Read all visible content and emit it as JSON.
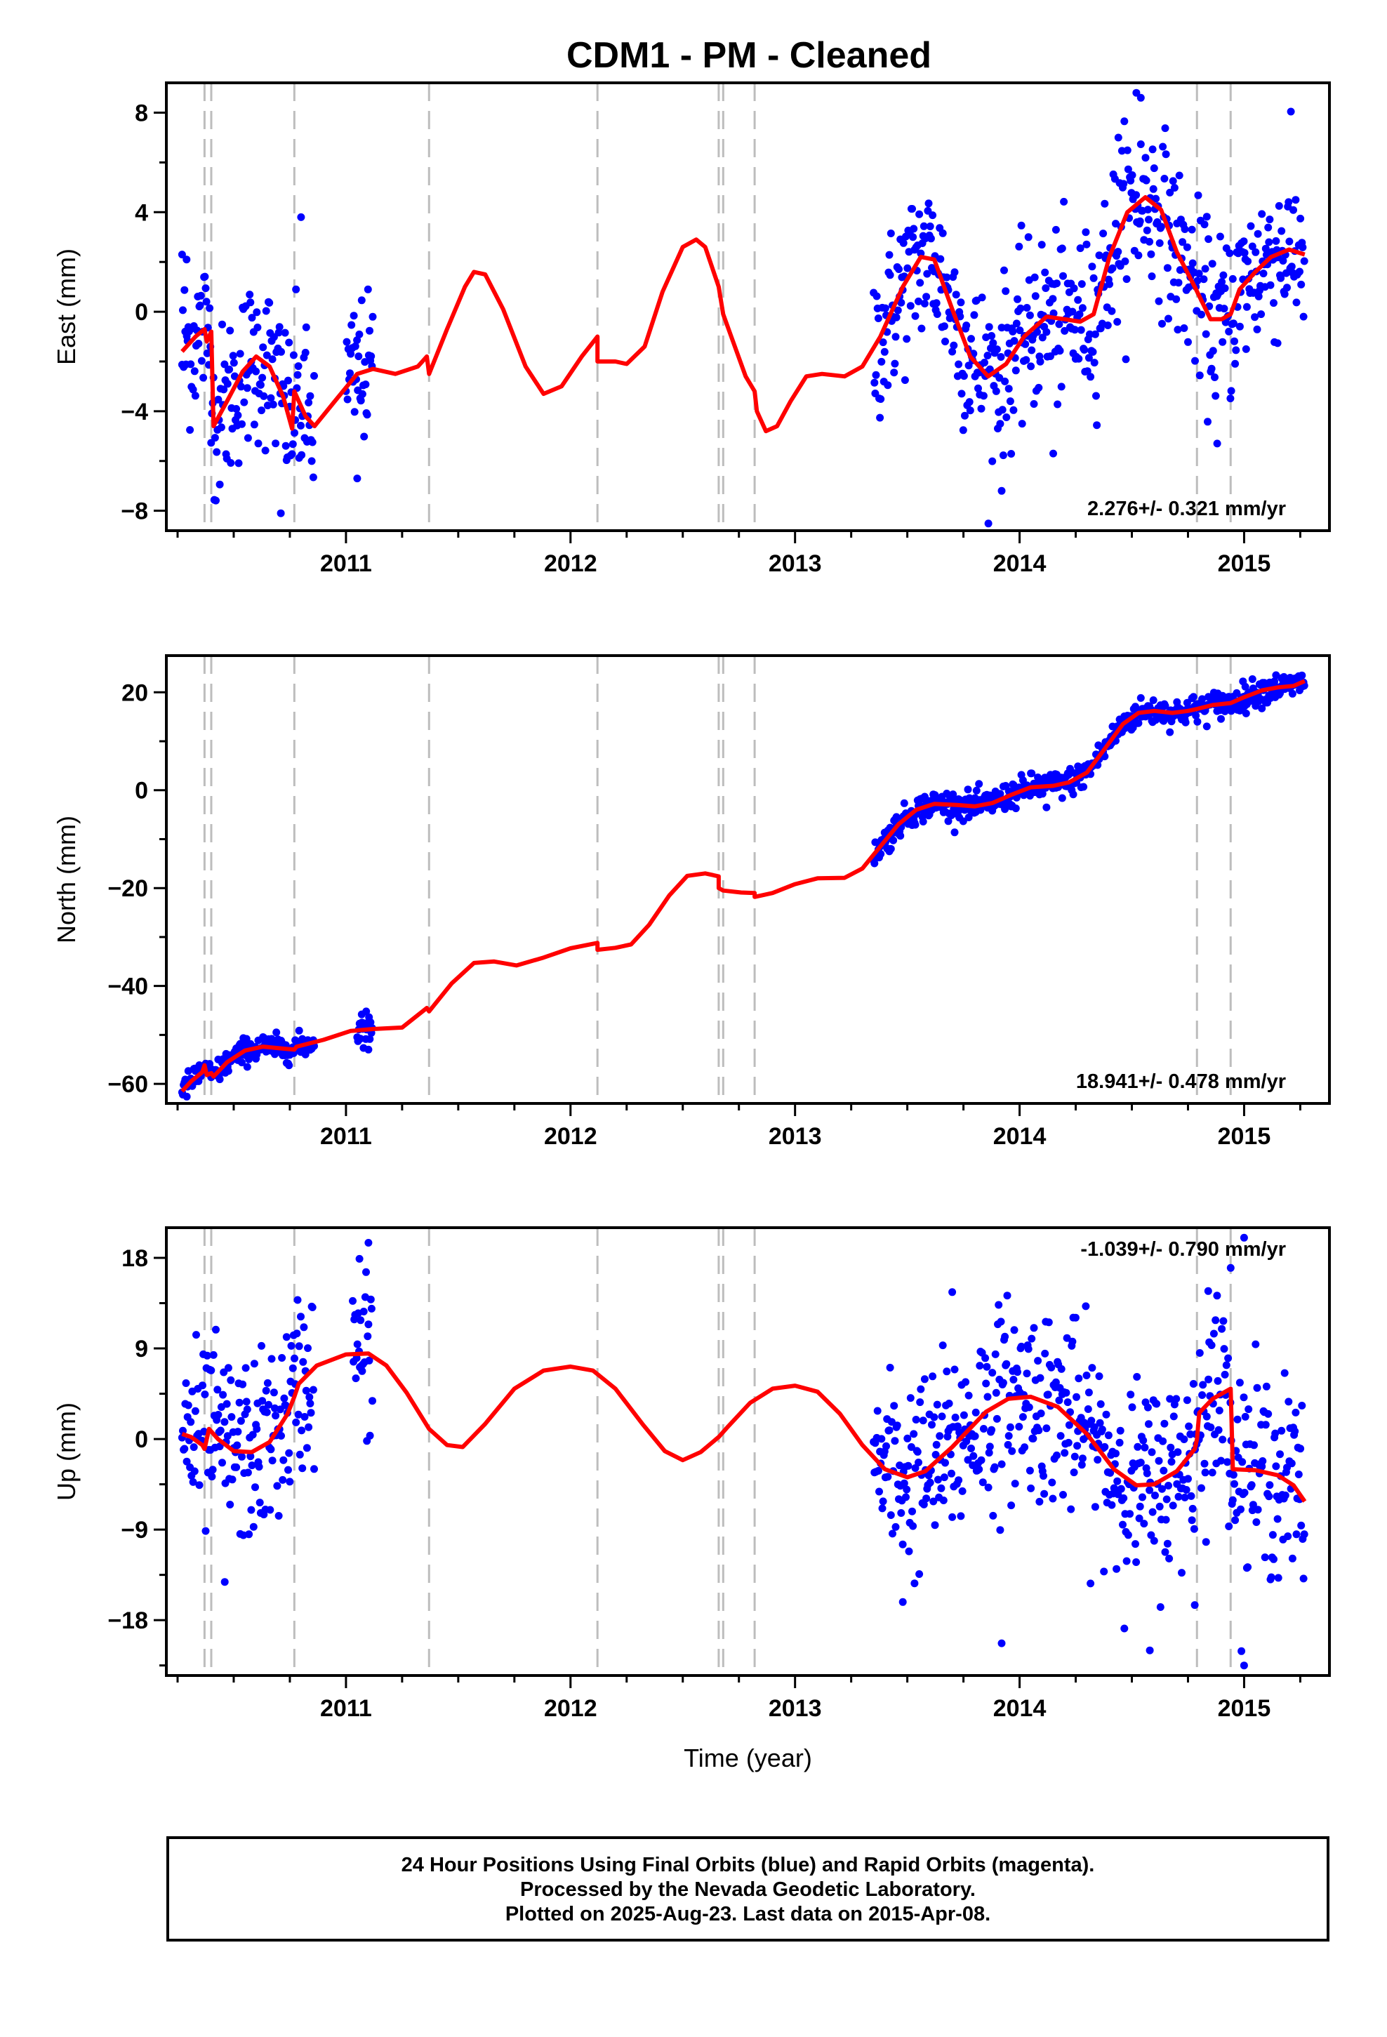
{
  "chart_data": {
    "type": "scatter",
    "title": "CDM1  - PM - Cleaned",
    "xlabel": "Time (year)",
    "xlim": [
      2010.2,
      2015.38
    ],
    "x_ticks": [
      2011,
      2012,
      2013,
      2014,
      2015
    ],
    "x_tick_labels": [
      "2011",
      "2012",
      "2013",
      "2014",
      "2015"
    ],
    "event_lines": [
      2010.37,
      2010.4,
      2010.77,
      2011.37,
      2012.12,
      2012.66,
      2012.68,
      2012.82,
      2014.79,
      2014.94
    ],
    "series_colors": {
      "points": "#0000ff",
      "model": "#ff0000",
      "events": "#bdbdbd"
    },
    "panels": [
      {
        "key": "east",
        "ylabel": "East (mm)",
        "ylim": [
          -8.8,
          9.2
        ],
        "y_ticks": [
          -8,
          -4,
          0,
          4,
          8
        ],
        "y_tick_labels": [
          "−8",
          "−4",
          "0",
          "4",
          "8"
        ],
        "rate": "2.276+/- 0.321 mm/yr",
        "rate_position": "bottom-right",
        "data_segments": [
          {
            "start": 2010.27,
            "end": 2010.86,
            "center": "model",
            "spread": 1.7
          },
          {
            "start": 2011.0,
            "end": 2011.12,
            "center": "model",
            "spread": 1.5
          },
          {
            "start": 2013.35,
            "end": 2015.27,
            "center": "model",
            "spread": 1.7
          }
        ],
        "outliers": [
          [
            2010.27,
            2.3
          ],
          [
            2010.29,
            2.1
          ],
          [
            2010.8,
            3.8
          ],
          [
            2010.71,
            -8.1
          ],
          [
            2011.05,
            -6.7
          ],
          [
            2014.52,
            8.8
          ],
          [
            2014.54,
            8.6
          ],
          [
            2013.92,
            -7.2
          ],
          [
            2014.15,
            -5.7
          ],
          [
            2014.88,
            -5.3
          ],
          [
            2014.44,
            7.0
          ]
        ],
        "model": [
          [
            2010.27,
            -1.6
          ],
          [
            2010.33,
            -1.0
          ],
          [
            2010.37,
            -0.7
          ],
          [
            2010.38,
            -1.2
          ],
          [
            2010.4,
            -0.8
          ],
          [
            2010.41,
            -4.6
          ],
          [
            2010.47,
            -3.6
          ],
          [
            2010.54,
            -2.4
          ],
          [
            2010.6,
            -1.8
          ],
          [
            2010.66,
            -2.2
          ],
          [
            2010.72,
            -3.4
          ],
          [
            2010.76,
            -4.7
          ],
          [
            2010.77,
            -3.2
          ],
          [
            2010.82,
            -4.2
          ],
          [
            2010.86,
            -4.6
          ],
          [
            2010.95,
            -3.6
          ],
          [
            2011.05,
            -2.5
          ],
          [
            2011.12,
            -2.3
          ],
          [
            2011.22,
            -2.5
          ],
          [
            2011.32,
            -2.2
          ],
          [
            2011.36,
            -1.8
          ],
          [
            2011.37,
            -2.5
          ],
          [
            2011.45,
            -0.7
          ],
          [
            2011.53,
            1.0
          ],
          [
            2011.57,
            1.6
          ],
          [
            2011.62,
            1.5
          ],
          [
            2011.7,
            0.1
          ],
          [
            2011.8,
            -2.2
          ],
          [
            2011.88,
            -3.3
          ],
          [
            2011.96,
            -3.0
          ],
          [
            2012.05,
            -1.8
          ],
          [
            2012.12,
            -1.0
          ],
          [
            2012.12,
            -2.0
          ],
          [
            2012.2,
            -2.0
          ],
          [
            2012.25,
            -2.1
          ],
          [
            2012.33,
            -1.4
          ],
          [
            2012.41,
            0.8
          ],
          [
            2012.5,
            2.6
          ],
          [
            2012.56,
            2.9
          ],
          [
            2012.6,
            2.6
          ],
          [
            2012.66,
            1.0
          ],
          [
            2012.68,
            -0.1
          ],
          [
            2012.72,
            -1.1
          ],
          [
            2012.78,
            -2.6
          ],
          [
            2012.82,
            -3.2
          ],
          [
            2012.83,
            -4.0
          ],
          [
            2012.87,
            -4.8
          ],
          [
            2012.92,
            -4.6
          ],
          [
            2012.98,
            -3.6
          ],
          [
            2013.05,
            -2.6
          ],
          [
            2013.12,
            -2.5
          ],
          [
            2013.22,
            -2.6
          ],
          [
            2013.3,
            -2.2
          ],
          [
            2013.38,
            -1.0
          ],
          [
            2013.48,
            1.0
          ],
          [
            2013.56,
            2.2
          ],
          [
            2013.62,
            2.1
          ],
          [
            2013.7,
            0.1
          ],
          [
            2013.78,
            -1.8
          ],
          [
            2013.86,
            -2.6
          ],
          [
            2013.94,
            -2.1
          ],
          [
            2014.02,
            -1.0
          ],
          [
            2014.12,
            -0.2
          ],
          [
            2014.2,
            -0.3
          ],
          [
            2014.27,
            -0.4
          ],
          [
            2014.33,
            -0.1
          ],
          [
            2014.4,
            2.2
          ],
          [
            2014.48,
            4.0
          ],
          [
            2014.56,
            4.6
          ],
          [
            2014.63,
            4.1
          ],
          [
            2014.7,
            2.4
          ],
          [
            2014.78,
            1.0
          ],
          [
            2014.85,
            -0.3
          ],
          [
            2014.9,
            -0.3
          ],
          [
            2014.94,
            -0.1
          ],
          [
            2014.98,
            0.9
          ],
          [
            2015.05,
            1.6
          ],
          [
            2015.12,
            2.2
          ],
          [
            2015.2,
            2.5
          ],
          [
            2015.27,
            2.3
          ]
        ]
      },
      {
        "key": "north",
        "ylabel": "North (mm)",
        "ylim": [
          -64,
          27.5
        ],
        "y_ticks": [
          -60,
          -40,
          -20,
          0,
          20
        ],
        "y_tick_labels": [
          "−60",
          "−40",
          "−20",
          "0",
          "20"
        ],
        "rate": "18.941+/- 0.478 mm/yr",
        "rate_position": "bottom-right",
        "data_segments": [
          {
            "start": 2010.27,
            "end": 2010.86,
            "center": "model",
            "spread": 1.3
          },
          {
            "start": 2011.05,
            "end": 2011.12,
            "center": "model",
            "spread": 1.3
          },
          {
            "start": 2013.35,
            "end": 2015.27,
            "center": "model",
            "spread": 1.4
          }
        ],
        "outliers": [
          [
            2011.07,
            -45.8
          ],
          [
            2011.09,
            -45.2
          ],
          [
            2011.1,
            -53.0
          ],
          [
            2014.12,
            -3.5
          ],
          [
            2013.42,
            -12.5
          ]
        ],
        "model": [
          [
            2010.27,
            -61.5
          ],
          [
            2010.31,
            -59.5
          ],
          [
            2010.36,
            -57.6
          ],
          [
            2010.37,
            -56.2
          ],
          [
            2010.38,
            -58.2
          ],
          [
            2010.4,
            -57.8
          ],
          [
            2010.41,
            -58.5
          ],
          [
            2010.47,
            -55.6
          ],
          [
            2010.55,
            -53.2
          ],
          [
            2010.63,
            -52.4
          ],
          [
            2010.72,
            -52.8
          ],
          [
            2010.77,
            -53.0
          ],
          [
            2010.78,
            -52.4
          ],
          [
            2010.9,
            -51.0
          ],
          [
            2011.02,
            -49.2
          ],
          [
            2011.12,
            -48.8
          ],
          [
            2011.25,
            -48.5
          ],
          [
            2011.36,
            -44.5
          ],
          [
            2011.37,
            -45.2
          ],
          [
            2011.47,
            -39.5
          ],
          [
            2011.57,
            -35.3
          ],
          [
            2011.66,
            -35.0
          ],
          [
            2011.76,
            -35.8
          ],
          [
            2011.88,
            -34.2
          ],
          [
            2012.0,
            -32.3
          ],
          [
            2012.12,
            -31.2
          ],
          [
            2012.12,
            -32.6
          ],
          [
            2012.2,
            -32.2
          ],
          [
            2012.27,
            -31.5
          ],
          [
            2012.35,
            -27.5
          ],
          [
            2012.44,
            -21.5
          ],
          [
            2012.52,
            -17.5
          ],
          [
            2012.6,
            -17.0
          ],
          [
            2012.66,
            -17.6
          ],
          [
            2012.66,
            -20.0
          ],
          [
            2012.68,
            -20.5
          ],
          [
            2012.76,
            -20.9
          ],
          [
            2012.82,
            -21.0
          ],
          [
            2012.82,
            -21.8
          ],
          [
            2012.9,
            -21.0
          ],
          [
            2013.0,
            -19.2
          ],
          [
            2013.1,
            -18.0
          ],
          [
            2013.22,
            -17.9
          ],
          [
            2013.3,
            -16.0
          ],
          [
            2013.38,
            -11.5
          ],
          [
            2013.46,
            -7.0
          ],
          [
            2013.54,
            -4.0
          ],
          [
            2013.62,
            -2.8
          ],
          [
            2013.72,
            -3.0
          ],
          [
            2013.8,
            -3.3
          ],
          [
            2013.88,
            -2.6
          ],
          [
            2013.96,
            -1.0
          ],
          [
            2014.05,
            0.6
          ],
          [
            2014.15,
            0.9
          ],
          [
            2014.22,
            1.6
          ],
          [
            2014.3,
            3.6
          ],
          [
            2014.38,
            8.5
          ],
          [
            2014.46,
            13.5
          ],
          [
            2014.53,
            15.8
          ],
          [
            2014.6,
            16.2
          ],
          [
            2014.68,
            15.8
          ],
          [
            2014.75,
            16.2
          ],
          [
            2014.79,
            16.6
          ],
          [
            2014.86,
            17.4
          ],
          [
            2014.94,
            17.8
          ],
          [
            2015.0,
            19.0
          ],
          [
            2015.08,
            20.4
          ],
          [
            2015.15,
            21.0
          ],
          [
            2015.22,
            21.3
          ],
          [
            2015.27,
            22.3
          ]
        ]
      },
      {
        "key": "up",
        "ylabel": "Up (mm)",
        "ylim": [
          -23.5,
          21
        ],
        "y_ticks": [
          -18,
          -9,
          0,
          9,
          18
        ],
        "y_tick_labels": [
          "−18",
          "−9",
          "0",
          "9",
          "18"
        ],
        "rate": "-1.039+/- 0.790 mm/yr",
        "rate_position": "top-right",
        "data_segments": [
          {
            "start": 2010.27,
            "end": 2010.86,
            "center": "model",
            "spread": 4.5
          },
          {
            "start": 2011.03,
            "end": 2011.12,
            "center": "model",
            "spread": 4.0
          },
          {
            "start": 2013.35,
            "end": 2015.27,
            "center": "model",
            "spread": 4.8
          }
        ],
        "outliers": [
          [
            2011.1,
            19.5
          ],
          [
            2011.06,
            17.9
          ],
          [
            2010.46,
            -14.2
          ],
          [
            2013.92,
            -20.3
          ],
          [
            2014.58,
            -21.0
          ],
          [
            2015.0,
            -22.5
          ],
          [
            2015.0,
            20.0
          ],
          [
            2014.94,
            17.0
          ],
          [
            2014.84,
            14.7
          ],
          [
            2013.48,
            -16.2
          ],
          [
            2013.7,
            14.6
          ],
          [
            2014.78,
            -16.5
          ]
        ],
        "model": [
          [
            2010.27,
            0.5
          ],
          [
            2010.31,
            0.2
          ],
          [
            2010.36,
            -0.6
          ],
          [
            2010.37,
            -1.0
          ],
          [
            2010.39,
            1.0
          ],
          [
            2010.43,
            0.0
          ],
          [
            2010.5,
            -1.2
          ],
          [
            2010.58,
            -1.3
          ],
          [
            2010.66,
            -0.3
          ],
          [
            2010.74,
            2.5
          ],
          [
            2010.77,
            4.2
          ],
          [
            2010.79,
            5.5
          ],
          [
            2010.87,
            7.3
          ],
          [
            2011.0,
            8.4
          ],
          [
            2011.1,
            8.5
          ],
          [
            2011.18,
            7.3
          ],
          [
            2011.27,
            4.6
          ],
          [
            2011.37,
            1.0
          ],
          [
            2011.45,
            -0.6
          ],
          [
            2011.52,
            -0.8
          ],
          [
            2011.62,
            1.5
          ],
          [
            2011.75,
            5.0
          ],
          [
            2011.88,
            6.8
          ],
          [
            2012.0,
            7.2
          ],
          [
            2012.1,
            6.8
          ],
          [
            2012.2,
            5.0
          ],
          [
            2012.32,
            1.5
          ],
          [
            2012.42,
            -1.2
          ],
          [
            2012.5,
            -2.1
          ],
          [
            2012.58,
            -1.3
          ],
          [
            2012.66,
            0.2
          ],
          [
            2012.7,
            1.2
          ],
          [
            2012.8,
            3.6
          ],
          [
            2012.9,
            5.0
          ],
          [
            2013.0,
            5.3
          ],
          [
            2013.1,
            4.7
          ],
          [
            2013.2,
            2.5
          ],
          [
            2013.3,
            -0.6
          ],
          [
            2013.4,
            -3.0
          ],
          [
            2013.5,
            -3.8
          ],
          [
            2013.58,
            -3.2
          ],
          [
            2013.7,
            -0.8
          ],
          [
            2013.85,
            2.7
          ],
          [
            2013.95,
            4.0
          ],
          [
            2014.05,
            4.2
          ],
          [
            2014.17,
            3.2
          ],
          [
            2014.3,
            0.5
          ],
          [
            2014.42,
            -3.0
          ],
          [
            2014.52,
            -4.6
          ],
          [
            2014.6,
            -4.5
          ],
          [
            2014.7,
            -3.2
          ],
          [
            2014.78,
            -1.0
          ],
          [
            2014.79,
            0.0
          ],
          [
            2014.8,
            2.6
          ],
          [
            2014.86,
            4.0
          ],
          [
            2014.94,
            5.0
          ],
          [
            2014.95,
            -3.0
          ],
          [
            2015.05,
            -3.1
          ],
          [
            2015.15,
            -3.6
          ],
          [
            2015.22,
            -4.6
          ],
          [
            2015.27,
            -6.2
          ]
        ]
      }
    ]
  },
  "footer": {
    "line1": "24 Hour Positions Using Final Orbits (blue) and Rapid Orbits (magenta).",
    "line2": "Processed by the Nevada Geodetic Laboratory.",
    "line3": "Plotted on 2025-Aug-23. Last data on 2015-Apr-08."
  }
}
